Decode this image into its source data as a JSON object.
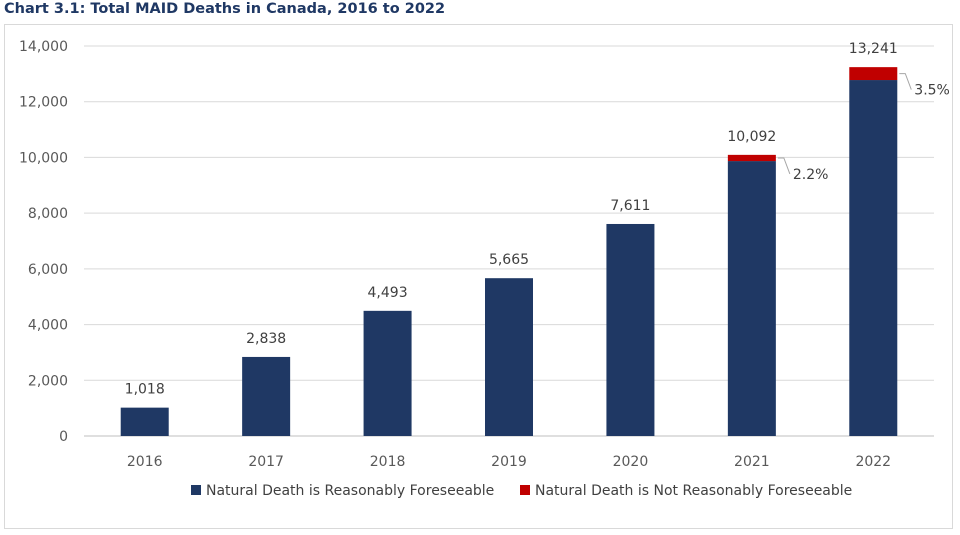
{
  "chart_data": {
    "type": "bar",
    "stacked": true,
    "title": "Chart 3.1: Total MAID Deaths in Canada, 2016 to 2022",
    "xlabel": "",
    "ylabel": "",
    "categories": [
      "2016",
      "2017",
      "2018",
      "2019",
      "2020",
      "2021",
      "2022"
    ],
    "series": [
      {
        "name": "Natural Death is Reasonably Foreseeable",
        "color": "#1f3864",
        "values": [
          1018,
          2838,
          4493,
          5665,
          7611,
          9869,
          12778
        ]
      },
      {
        "name": "Natural Death is Not Reasonably Foreseeable",
        "color": "#c00000",
        "values": [
          0,
          0,
          0,
          0,
          0,
          223,
          463
        ]
      }
    ],
    "totals": [
      "1,018",
      "2,838",
      "4,493",
      "5,665",
      "7,611",
      "10,092",
      "13,241"
    ],
    "total_values": [
      1018,
      2838,
      4493,
      5665,
      7611,
      10092,
      13241
    ],
    "annotations": [
      {
        "category": "2021",
        "text": "2.2%"
      },
      {
        "category": "2022",
        "text": "3.5%"
      }
    ],
    "ylim": [
      0,
      14000
    ],
    "yticks": [
      0,
      2000,
      4000,
      6000,
      8000,
      10000,
      12000,
      14000
    ],
    "ytick_labels": [
      "0",
      "2,000",
      "4,000",
      "6,000",
      "8,000",
      "10,000",
      "12,000",
      "14,000"
    ],
    "grid": true,
    "legend_position": "bottom"
  }
}
